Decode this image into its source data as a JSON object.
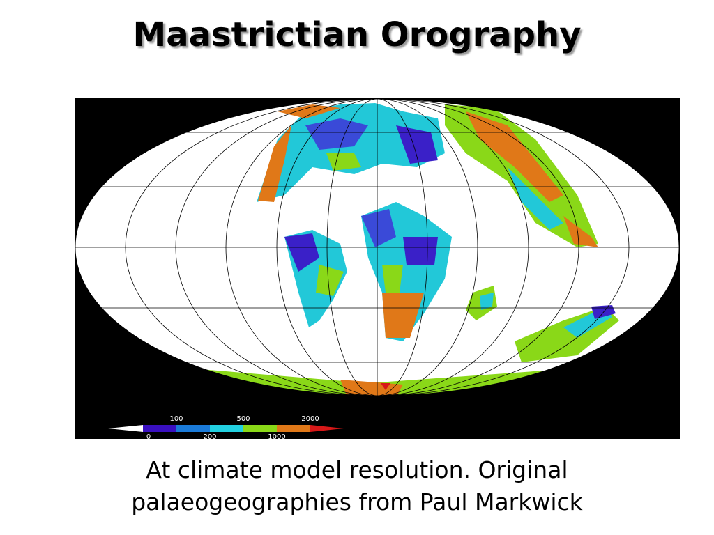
{
  "title": "Maastrictian Orography",
  "map": {
    "colorbar": {
      "upper_labels": [
        "100",
        "500",
        "2000"
      ],
      "lower_labels": [
        "0",
        "200",
        "1000"
      ]
    }
  },
  "caption": {
    "lines": [
      "At climate model resolution. Original",
      "palaeogeographies from Paul Markwick"
    ]
  }
}
